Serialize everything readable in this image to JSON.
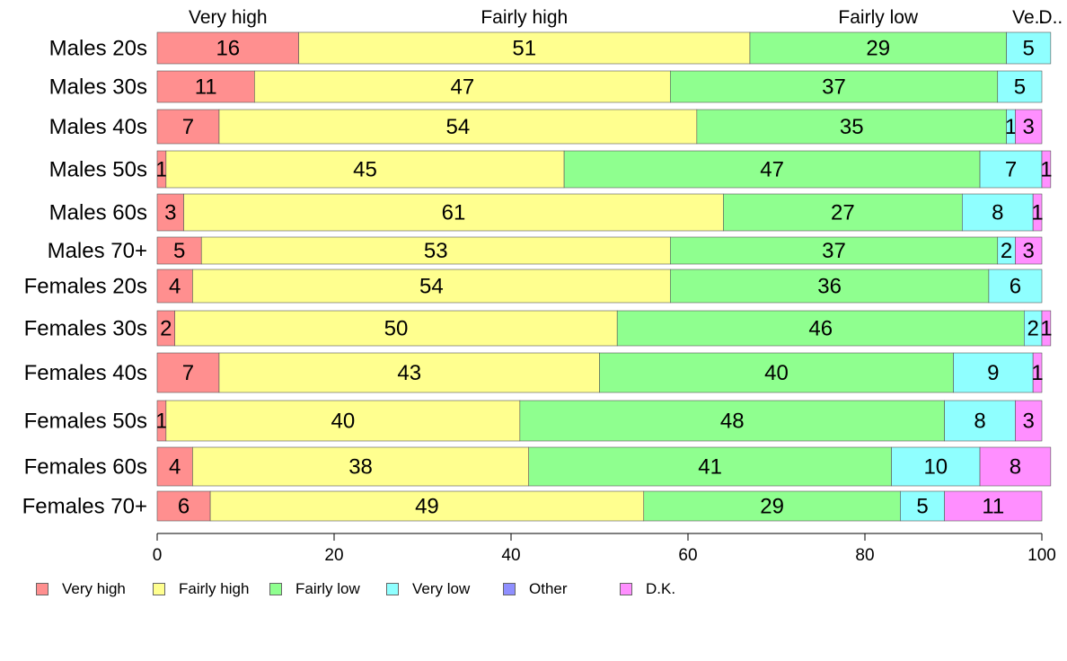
{
  "chart_data": {
    "type": "bar",
    "orientation": "horizontal",
    "stacked": true,
    "categories": [
      "Males 20s",
      "Males 30s",
      "Males 40s",
      "Males 50s",
      "Males 60s",
      "Males 70+",
      "Females 20s",
      "Females 30s",
      "Females 40s",
      "Females 50s",
      "Females 60s",
      "Females 70+"
    ],
    "series": [
      {
        "name": "Very high",
        "color": "#ff8f8f",
        "values": [
          16,
          11,
          7,
          1,
          3,
          5,
          4,
          2,
          7,
          1,
          4,
          6
        ]
      },
      {
        "name": "Fairly high",
        "color": "#ffff8f",
        "values": [
          51,
          47,
          54,
          45,
          61,
          53,
          54,
          50,
          43,
          40,
          38,
          49
        ]
      },
      {
        "name": "Fairly low",
        "color": "#8fff8f",
        "values": [
          29,
          37,
          35,
          47,
          27,
          37,
          36,
          46,
          40,
          48,
          41,
          29
        ]
      },
      {
        "name": "Very low",
        "color": "#8fffff",
        "values": [
          5,
          5,
          1,
          7,
          8,
          2,
          6,
          2,
          9,
          8,
          10,
          5
        ]
      },
      {
        "name": "Other",
        "color": "#8f8fff",
        "values": [
          0,
          0,
          0,
          0,
          0,
          0,
          0,
          0,
          0,
          0,
          0,
          0
        ]
      },
      {
        "name": "D.K.",
        "color": "#ff8fff",
        "values": [
          0,
          0,
          3,
          1,
          1,
          3,
          0,
          1,
          1,
          3,
          8,
          11
        ]
      }
    ],
    "top_labels": [
      "Very high",
      "Fairly high",
      "Fairly low",
      "Ve..",
      "D.."
    ],
    "xlim": [
      0,
      100
    ],
    "xticks": [
      "0",
      "20",
      "40",
      "60",
      "80",
      "100"
    ],
    "grid": false,
    "legend_position": "bottom"
  }
}
